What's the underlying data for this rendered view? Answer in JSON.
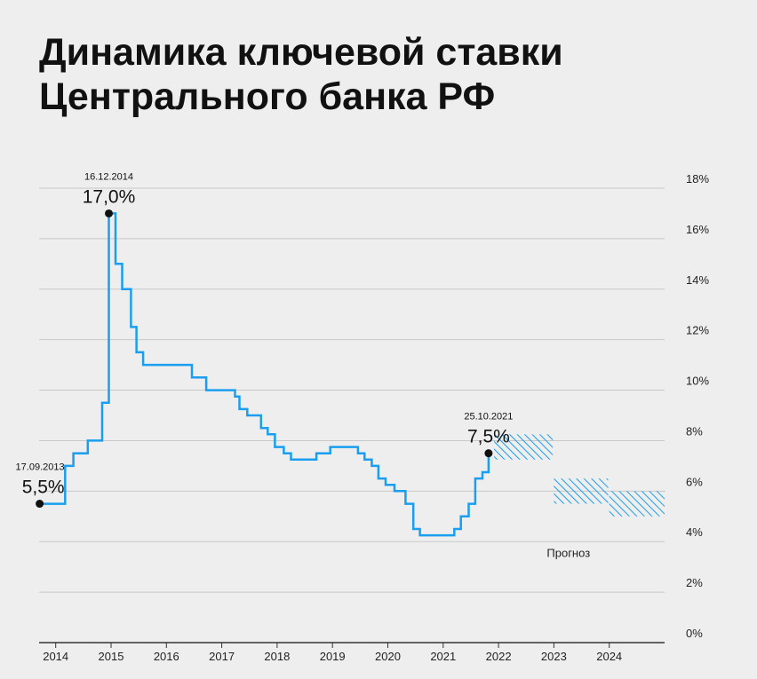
{
  "title_line1": "Динамика ключевой ставки",
  "title_line2": "Центрального банка РФ",
  "colors": {
    "line": "#1a9ef0",
    "grid": "#c8c8c8",
    "axis": "#333333",
    "background": "#eeeeee",
    "marker": "#111111"
  },
  "chart_data": {
    "type": "line",
    "step": true,
    "xlim": [
      2013.7,
      2025.0
    ],
    "ylim": [
      0,
      18
    ],
    "x_ticks": [
      "2014",
      "2015",
      "2016",
      "2017",
      "2018",
      "2019",
      "2020",
      "2021",
      "2022",
      "2023",
      "2024"
    ],
    "y_ticks": [
      "0%",
      "2%",
      "4%",
      "6%",
      "8%",
      "10%",
      "12%",
      "14%",
      "16%",
      "18%"
    ],
    "grid": true,
    "series": [
      {
        "points": [
          [
            2013.71,
            5.5
          ],
          [
            2014.17,
            7.0
          ],
          [
            2014.32,
            7.5
          ],
          [
            2014.58,
            8.0
          ],
          [
            2014.84,
            9.5
          ],
          [
            2014.96,
            17.0
          ],
          [
            2015.08,
            15.0
          ],
          [
            2015.2,
            14.0
          ],
          [
            2015.36,
            12.5
          ],
          [
            2015.46,
            11.5
          ],
          [
            2015.58,
            11.0
          ],
          [
            2016.46,
            10.5
          ],
          [
            2016.72,
            10.0
          ],
          [
            2017.24,
            9.75
          ],
          [
            2017.32,
            9.25
          ],
          [
            2017.46,
            9.0
          ],
          [
            2017.71,
            8.5
          ],
          [
            2017.83,
            8.25
          ],
          [
            2017.96,
            7.75
          ],
          [
            2018.12,
            7.5
          ],
          [
            2018.25,
            7.25
          ],
          [
            2018.71,
            7.5
          ],
          [
            2018.96,
            7.75
          ],
          [
            2019.46,
            7.5
          ],
          [
            2019.58,
            7.25
          ],
          [
            2019.71,
            7.0
          ],
          [
            2019.83,
            6.5
          ],
          [
            2019.96,
            6.25
          ],
          [
            2020.12,
            6.0
          ],
          [
            2020.32,
            5.5
          ],
          [
            2020.46,
            4.5
          ],
          [
            2020.58,
            4.25
          ],
          [
            2021.2,
            4.5
          ],
          [
            2021.32,
            5.0
          ],
          [
            2021.46,
            5.5
          ],
          [
            2021.58,
            6.5
          ],
          [
            2021.71,
            6.75
          ],
          [
            2021.82,
            7.5
          ]
        ]
      }
    ],
    "forecast": {
      "label": "Прогноз",
      "ranges": [
        {
          "x": [
            2021.92,
            2022.98
          ],
          "y": [
            7.25,
            8.25
          ]
        },
        {
          "x": [
            2023.0,
            2023.98
          ],
          "y": [
            5.5,
            6.5
          ]
        },
        {
          "x": [
            2024.0,
            2025.0
          ],
          "y": [
            5.0,
            6.0
          ]
        }
      ]
    },
    "annotations": [
      {
        "x": 2013.71,
        "y": 5.5,
        "date": "17.09.2013",
        "value": "5,5%"
      },
      {
        "x": 2014.96,
        "y": 17.0,
        "date": "16.12.2014",
        "value": "17,0%"
      },
      {
        "x": 2021.82,
        "y": 7.5,
        "date": "25.10.2021",
        "value": "7,5%"
      }
    ]
  }
}
